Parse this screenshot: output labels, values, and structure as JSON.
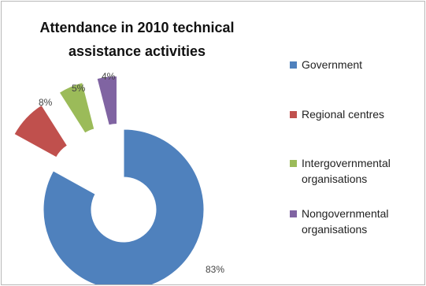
{
  "chart_data": {
    "type": "pie",
    "subtype": "doughnut-exploded",
    "title": "Attendance in 2010 technical assistance activities",
    "legend_position": "right",
    "categories": [
      "Government",
      "Regional centres",
      "Intergovernmental organisations",
      "Nongovernmental organisations"
    ],
    "values": [
      83,
      8,
      5,
      4
    ],
    "data_labels": [
      "83%",
      "8%",
      "5%",
      "4%"
    ],
    "colors": [
      "#4f81bd",
      "#c0504d",
      "#9bbb59",
      "#8064a2"
    ]
  }
}
